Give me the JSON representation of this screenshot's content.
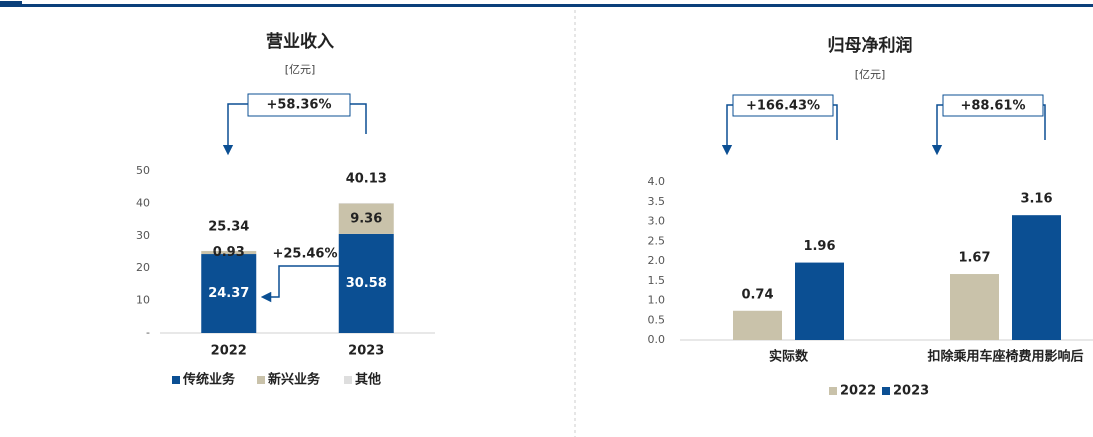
{
  "chart_data": [
    {
      "type": "bar",
      "stacked": true,
      "title": "营业收入",
      "subtitle": "[亿元]",
      "categories": [
        "2022",
        "2023"
      ],
      "series": [
        {
          "name": "传统业务",
          "color": "#0b4f93",
          "values": [
            24.37,
            30.58
          ]
        },
        {
          "name": "新兴业务",
          "color": "#c9c2aa",
          "values": [
            0.93,
            9.36
          ]
        },
        {
          "name": "其他",
          "color": "#dedede",
          "values": [
            0.04,
            0.19
          ]
        }
      ],
      "totals": [
        25.34,
        40.13
      ],
      "ylim": [
        0,
        50
      ],
      "yticks": [
        {
          "value": 0,
          "label": "-"
        },
        10,
        20,
        30,
        40,
        50
      ],
      "grid": false,
      "legend": "bottom",
      "annotations": [
        "+58.36%",
        "+25.46%"
      ]
    },
    {
      "type": "bar",
      "stacked": false,
      "title": "归母净利润",
      "subtitle": "[亿元]",
      "categories": [
        "实际数",
        "扣除乘用车座椅费用影响后"
      ],
      "series": [
        {
          "name": "2022",
          "color": "#c9c2aa",
          "values": [
            0.74,
            1.67
          ]
        },
        {
          "name": "2023",
          "color": "#0b4f93",
          "values": [
            1.96,
            3.16
          ]
        }
      ],
      "ylim": [
        0,
        4
      ],
      "yticks": [
        {
          "value": 0,
          "label": "0.0"
        },
        0.5,
        {
          "value": 1,
          "label": "1.0"
        },
        1.5,
        {
          "value": 2,
          "label": "2.0"
        },
        2.5,
        {
          "value": 3,
          "label": "3.0"
        },
        3.5,
        {
          "value": 4,
          "label": "4.0"
        }
      ],
      "grid": false,
      "legend": "bottom",
      "annotations": [
        "+166.43%",
        "+88.61%"
      ]
    }
  ]
}
